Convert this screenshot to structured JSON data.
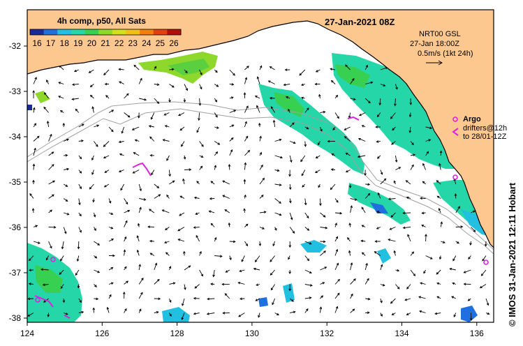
{
  "map": {
    "title": "27-Jan-2021 08Z",
    "colorbar": {
      "title": "4h comp, p50, All Sats",
      "labels": [
        "16",
        "17",
        "18",
        "19",
        "20",
        "21",
        "22",
        "23",
        "24",
        "25",
        "26"
      ],
      "colors": [
        "#1a2a9a",
        "#1f6fe0",
        "#22c0e0",
        "#24d6a8",
        "#38d050",
        "#8ed82c",
        "#d2e020",
        "#f0c018",
        "#f08010",
        "#e04010",
        "#b01008"
      ]
    },
    "velocity_key": {
      "source": "NRT00 GSL",
      "time": "27-Jan 18:00Z",
      "scale": "0.5m/s (1kt 24h)"
    },
    "argo_legend": {
      "argo_label": "Argo",
      "drifters_label": "drifters@12h",
      "drifters_range": "to 28/01-12Z"
    },
    "credit": "© IMOS 31-Jan-2021 12:11 Hobart",
    "lon_labels": [
      "124",
      "126",
      "128",
      "130",
      "132",
      "134",
      "136"
    ],
    "lat_labels": [
      "-32",
      "-33",
      "-34",
      "-35",
      "-36",
      "-37",
      "-38"
    ],
    "colors": {
      "land": "#fcc890",
      "coast": "#000000",
      "bathymetry": "#a0a0a0",
      "argo": "#e020e0",
      "arrow": "#000000"
    }
  }
}
